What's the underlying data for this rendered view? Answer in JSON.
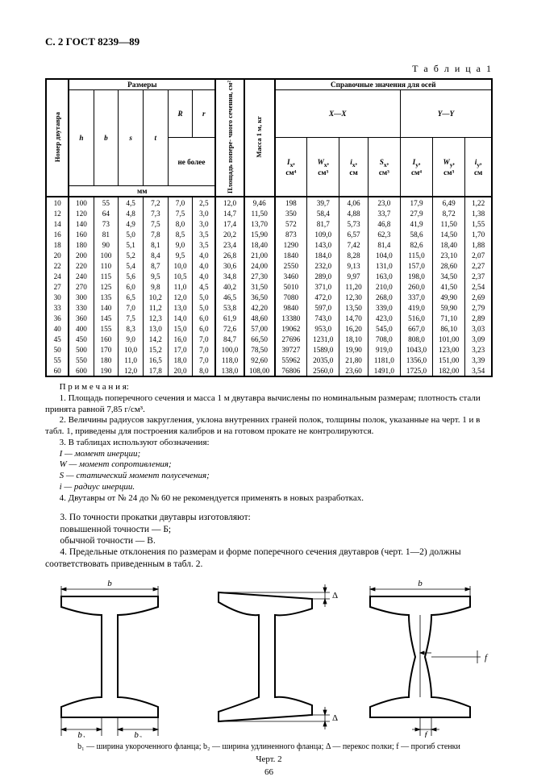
{
  "page_header": "С. 2  ГОСТ 8239—89",
  "table_label": "Т а б л и ц а   1",
  "table": {
    "group_headers": {
      "sizes": "Размеры",
      "reference": "Справочные значения для осей"
    },
    "row_label": "Номер двутавра",
    "area_label": "Площадь попере-\nчного сечения, см²",
    "mass_label": "Масса 1 м, кг",
    "axis_xx": "X—X",
    "axis_yy": "Y—Y",
    "size_cols": [
      "h",
      "b",
      "s",
      "t",
      "R",
      "r"
    ],
    "no_more": "не более",
    "unit_mm": "мм",
    "ref_cols": [
      {
        "sym": "I",
        "sub": "x",
        "unit": "см⁴"
      },
      {
        "sym": "W",
        "sub": "x",
        "unit": "см³"
      },
      {
        "sym": "i",
        "sub": "x",
        "unit": "см"
      },
      {
        "sym": "S",
        "sub": "x",
        "unit": "см³"
      },
      {
        "sym": "I",
        "sub": "y",
        "unit": "см⁴"
      },
      {
        "sym": "W",
        "sub": "y",
        "unit": "см³"
      },
      {
        "sym": "i",
        "sub": "y",
        "unit": "см"
      }
    ],
    "rows": [
      [
        "10",
        "100",
        "55",
        "4,5",
        "7,2",
        "7,0",
        "2,5",
        "12,0",
        "9,46",
        "198",
        "39,7",
        "4,06",
        "23,0",
        "17,9",
        "6,49",
        "1,22"
      ],
      [
        "12",
        "120",
        "64",
        "4,8",
        "7,3",
        "7,5",
        "3,0",
        "14,7",
        "11,50",
        "350",
        "58,4",
        "4,88",
        "33,7",
        "27,9",
        "8,72",
        "1,38"
      ],
      [
        "14",
        "140",
        "73",
        "4,9",
        "7,5",
        "8,0",
        "3,0",
        "17,4",
        "13,70",
        "572",
        "81,7",
        "5,73",
        "46,8",
        "41,9",
        "11,50",
        "1,55"
      ],
      [
        "16",
        "160",
        "81",
        "5,0",
        "7,8",
        "8,5",
        "3,5",
        "20,2",
        "15,90",
        "873",
        "109,0",
        "6,57",
        "62,3",
        "58,6",
        "14,50",
        "1,70"
      ],
      [
        "18",
        "180",
        "90",
        "5,1",
        "8,1",
        "9,0",
        "3,5",
        "23,4",
        "18,40",
        "1290",
        "143,0",
        "7,42",
        "81,4",
        "82,6",
        "18,40",
        "1,88"
      ],
      [
        "20",
        "200",
        "100",
        "5,2",
        "8,4",
        "9,5",
        "4,0",
        "26,8",
        "21,00",
        "1840",
        "184,0",
        "8,28",
        "104,0",
        "115,0",
        "23,10",
        "2,07"
      ],
      [
        "22",
        "220",
        "110",
        "5,4",
        "8,7",
        "10,0",
        "4,0",
        "30,6",
        "24,00",
        "2550",
        "232,0",
        "9,13",
        "131,0",
        "157,0",
        "28,60",
        "2,27"
      ],
      [
        "24",
        "240",
        "115",
        "5,6",
        "9,5",
        "10,5",
        "4,0",
        "34,8",
        "27,30",
        "3460",
        "289,0",
        "9,97",
        "163,0",
        "198,0",
        "34,50",
        "2,37"
      ],
      [
        "27",
        "270",
        "125",
        "6,0",
        "9,8",
        "11,0",
        "4,5",
        "40,2",
        "31,50",
        "5010",
        "371,0",
        "11,20",
        "210,0",
        "260,0",
        "41,50",
        "2,54"
      ],
      [
        "30",
        "300",
        "135",
        "6,5",
        "10,2",
        "12,0",
        "5,0",
        "46,5",
        "36,50",
        "7080",
        "472,0",
        "12,30",
        "268,0",
        "337,0",
        "49,90",
        "2,69"
      ],
      [
        "33",
        "330",
        "140",
        "7,0",
        "11,2",
        "13,0",
        "5,0",
        "53,8",
        "42,20",
        "9840",
        "597,0",
        "13,50",
        "339,0",
        "419,0",
        "59,90",
        "2,79"
      ],
      [
        "36",
        "360",
        "145",
        "7,5",
        "12,3",
        "14,0",
        "6,0",
        "61,9",
        "48,60",
        "13380",
        "743,0",
        "14,70",
        "423,0",
        "516,0",
        "71,10",
        "2,89"
      ],
      [
        "40",
        "400",
        "155",
        "8,3",
        "13,0",
        "15,0",
        "6,0",
        "72,6",
        "57,00",
        "19062",
        "953,0",
        "16,20",
        "545,0",
        "667,0",
        "86,10",
        "3,03"
      ],
      [
        "45",
        "450",
        "160",
        "9,0",
        "14,2",
        "16,0",
        "7,0",
        "84,7",
        "66,50",
        "27696",
        "1231,0",
        "18,10",
        "708,0",
        "808,0",
        "101,00",
        "3,09"
      ],
      [
        "50",
        "500",
        "170",
        "10,0",
        "15,2",
        "17,0",
        "7,0",
        "100,0",
        "78,50",
        "39727",
        "1589,0",
        "19,90",
        "919,0",
        "1043,0",
        "123,00",
        "3,23"
      ],
      [
        "55",
        "550",
        "180",
        "11,0",
        "16,5",
        "18,0",
        "7,0",
        "118,0",
        "92,60",
        "55962",
        "2035,0",
        "21,80",
        "1181,0",
        "1356,0",
        "151,00",
        "3,39"
      ],
      [
        "60",
        "600",
        "190",
        "12,0",
        "17,8",
        "20,0",
        "8,0",
        "138,0",
        "108,00",
        "76806",
        "2560,0",
        "23,60",
        "1491,0",
        "1725,0",
        "182,00",
        "3,54"
      ]
    ]
  },
  "notes": {
    "title": "П р и м е ч а н и я:",
    "items": [
      "1. Площадь поперечного сечения и масса 1 м двутавра вычислены по номинальным размерам; плотность стали принята равной 7,85 г/см³.",
      "2. Величины радиусов закругления, уклона внутренних граней полок, толщины полок, указанные на черт. 1 и в табл. 1, приведены для построения калибров и на готовом прокате не контролируются.",
      "3. В таблицах используют обозначения:",
      "I — момент инерции;",
      "W — момент сопротивления;",
      "S — статический момент полусечения;",
      "i — радиус инерции.",
      "4. Двутавры от № 24 до № 60 не рекомендуется применять в новых разработках."
    ]
  },
  "body": [
    "3. По точности прокатки двутавры изготовляют:",
    "повышенной точности — Б;",
    "обычной точности — В.",
    "4. Предельные отклонения по размерам и форме поперечного сечения двутавров (черт. 1—2) должны соответствовать приведенным в табл. 2."
  ],
  "fig_labels": {
    "b": "b",
    "b1": "b₁",
    "b2": "b₂",
    "delta": "Δ",
    "f": "f"
  },
  "fig_caption": "b₁ — ширина укороченного фланца; b₂ — ширина удлиненного фланца; Δ — перекос полки; f — прогиб стенки",
  "cherk": "Черт. 2",
  "page_number": "66"
}
